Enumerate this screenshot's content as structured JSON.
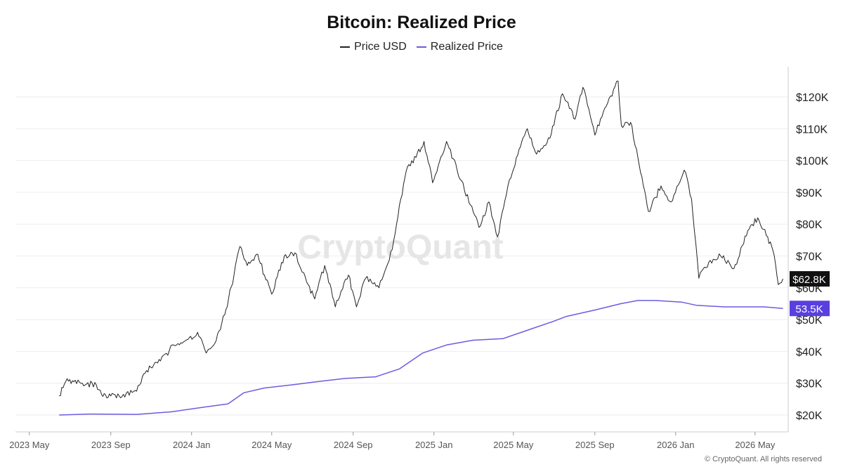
{
  "footer": "© CryptoQuant. All rights reserved",
  "watermark": "CryptoQuant",
  "colors": {
    "price": "#222222",
    "realized": "#6b5ce0",
    "grid": "#eeeeee"
  },
  "chart_data": {
    "type": "line",
    "title": "Bitcoin: Realized Price",
    "legend_position": "top-center",
    "grid": true,
    "x_ticks": [
      "2023 May",
      "2023 Sep",
      "2024 Jan",
      "2024 May",
      "2024 Sep",
      "2025 Jan",
      "2025 May",
      "2025 Sep",
      "2026 Jan",
      "2026 May"
    ],
    "y_ticks": [
      "$20K",
      "$30K",
      "$40K",
      "$50K",
      "$60K",
      "$70K",
      "$80K",
      "$90K",
      "$100K",
      "$110K",
      "$120K"
    ],
    "y_tick_values": [
      20000,
      30000,
      40000,
      50000,
      60000,
      70000,
      80000,
      90000,
      100000,
      110000,
      120000
    ],
    "ylim": [
      15000,
      130000
    ],
    "xlim": [
      "2023-04-10",
      "2026-06-20"
    ],
    "last_value_labels": {
      "price": "$62.8K",
      "realized": "53.5K"
    },
    "series": [
      {
        "name": "Price USD",
        "color": "#222222",
        "points": [
          [
            "2023-06-15",
            26000
          ],
          [
            "2023-06-25",
            30500
          ],
          [
            "2023-07-05",
            30800
          ],
          [
            "2023-07-20",
            30000
          ],
          [
            "2023-08-10",
            29500
          ],
          [
            "2023-08-18",
            26500
          ],
          [
            "2023-09-01",
            26000
          ],
          [
            "2023-09-20",
            26500
          ],
          [
            "2023-10-10",
            27500
          ],
          [
            "2023-10-25",
            34000
          ],
          [
            "2023-11-15",
            37000
          ],
          [
            "2023-12-05",
            42000
          ],
          [
            "2023-12-20",
            43000
          ],
          [
            "2024-01-10",
            46000
          ],
          [
            "2024-01-23",
            39500
          ],
          [
            "2024-02-05",
            42500
          ],
          [
            "2024-02-20",
            51500
          ],
          [
            "2024-03-05",
            64000
          ],
          [
            "2024-03-14",
            73000
          ],
          [
            "2024-03-25",
            67000
          ],
          [
            "2024-04-10",
            70500
          ],
          [
            "2024-04-20",
            64000
          ],
          [
            "2024-05-01",
            58000
          ],
          [
            "2024-05-20",
            70000
          ],
          [
            "2024-06-05",
            71000
          ],
          [
            "2024-06-25",
            61000
          ],
          [
            "2024-07-05",
            56500
          ],
          [
            "2024-07-20",
            67000
          ],
          [
            "2024-08-05",
            54000
          ],
          [
            "2024-08-25",
            64000
          ],
          [
            "2024-09-06",
            54000
          ],
          [
            "2024-09-20",
            63000
          ],
          [
            "2024-10-10",
            60000
          ],
          [
            "2024-10-30",
            72000
          ],
          [
            "2024-11-12",
            88000
          ],
          [
            "2024-11-22",
            98000
          ],
          [
            "2024-12-05",
            101000
          ],
          [
            "2024-12-17",
            106000
          ],
          [
            "2024-12-30",
            93000
          ],
          [
            "2025-01-20",
            106000
          ],
          [
            "2025-02-05",
            97000
          ],
          [
            "2025-02-25",
            86000
          ],
          [
            "2025-03-10",
            79000
          ],
          [
            "2025-03-25",
            87000
          ],
          [
            "2025-04-07",
            76000
          ],
          [
            "2025-04-25",
            94000
          ],
          [
            "2025-05-22",
            110000
          ],
          [
            "2025-06-05",
            102000
          ],
          [
            "2025-06-25",
            107000
          ],
          [
            "2025-07-14",
            121000
          ],
          [
            "2025-08-02",
            113000
          ],
          [
            "2025-08-14",
            123000
          ],
          [
            "2025-09-01",
            108000
          ],
          [
            "2025-09-18",
            117000
          ],
          [
            "2025-10-06",
            125000
          ],
          [
            "2025-10-11",
            111000
          ],
          [
            "2025-10-25",
            112000
          ],
          [
            "2025-11-05",
            101000
          ],
          [
            "2025-11-21",
            84000
          ],
          [
            "2025-12-10",
            92000
          ],
          [
            "2025-12-25",
            87000
          ],
          [
            "2026-01-14",
            97000
          ],
          [
            "2026-01-25",
            88000
          ],
          [
            "2026-02-05",
            63000
          ],
          [
            "2026-02-20",
            68000
          ],
          [
            "2026-03-10",
            70000
          ],
          [
            "2026-03-30",
            66000
          ],
          [
            "2026-04-20",
            78000
          ],
          [
            "2026-05-05",
            82000
          ],
          [
            "2026-05-20",
            76000
          ],
          [
            "2026-05-30",
            70000
          ],
          [
            "2026-06-05",
            61000
          ],
          [
            "2026-06-12",
            62800
          ]
        ]
      },
      {
        "name": "Realized Price",
        "color": "#6b5ce0",
        "points": [
          [
            "2023-06-15",
            20000
          ],
          [
            "2023-08-01",
            20300
          ],
          [
            "2023-10-10",
            20200
          ],
          [
            "2023-12-01",
            21000
          ],
          [
            "2024-01-20",
            22500
          ],
          [
            "2024-02-25",
            23500
          ],
          [
            "2024-03-20",
            27000
          ],
          [
            "2024-04-20",
            28500
          ],
          [
            "2024-06-01",
            29500
          ],
          [
            "2024-07-10",
            30500
          ],
          [
            "2024-08-20",
            31500
          ],
          [
            "2024-10-05",
            32000
          ],
          [
            "2024-11-10",
            34500
          ],
          [
            "2024-12-15",
            39500
          ],
          [
            "2025-01-20",
            42000
          ],
          [
            "2025-03-01",
            43500
          ],
          [
            "2025-04-15",
            44000
          ],
          [
            "2025-05-20",
            46500
          ],
          [
            "2025-07-01",
            49500
          ],
          [
            "2025-07-20",
            51000
          ],
          [
            "2025-09-01",
            53000
          ],
          [
            "2025-10-10",
            55000
          ],
          [
            "2025-11-05",
            56000
          ],
          [
            "2025-12-01",
            56000
          ],
          [
            "2026-01-10",
            55500
          ],
          [
            "2026-02-01",
            54500
          ],
          [
            "2026-03-15",
            54000
          ],
          [
            "2026-05-15",
            54000
          ],
          [
            "2026-06-12",
            53500
          ]
        ]
      }
    ]
  }
}
